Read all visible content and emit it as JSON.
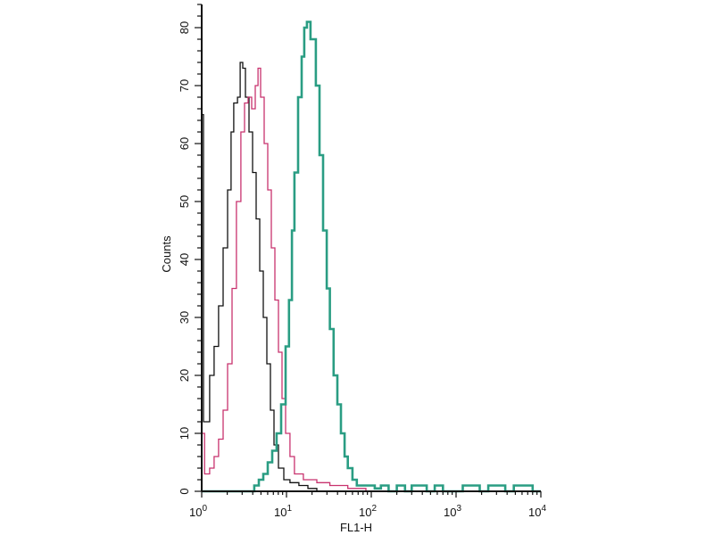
{
  "chart_data": {
    "type": "line",
    "title": "",
    "xlabel": "FL1-H",
    "ylabel": "Counts",
    "xscale": "log",
    "xlim": [
      1,
      10000
    ],
    "ylim": [
      0,
      84
    ],
    "grid": false,
    "legend": "none",
    "x_ticks": [
      {
        "value": 1,
        "base": "10",
        "exp": "0"
      },
      {
        "value": 10,
        "base": "10",
        "exp": "1"
      },
      {
        "value": 100,
        "base": "10",
        "exp": "2"
      },
      {
        "value": 1000,
        "base": "10",
        "exp": "3"
      },
      {
        "value": 10000,
        "base": "10",
        "exp": "4"
      }
    ],
    "y_ticks": [
      "0",
      "10",
      "20",
      "30",
      "40",
      "50",
      "60",
      "70",
      "80"
    ],
    "series": [
      {
        "color": "#111111",
        "points": [
          [
            1.0,
            0
          ],
          [
            1.0,
            65
          ],
          [
            1.05,
            12
          ],
          [
            1.24,
            20
          ],
          [
            1.4,
            25
          ],
          [
            1.58,
            32
          ],
          [
            1.79,
            42
          ],
          [
            2.02,
            52
          ],
          [
            2.22,
            62
          ],
          [
            2.39,
            67
          ],
          [
            2.64,
            68
          ],
          [
            2.84,
            74
          ],
          [
            3.05,
            73
          ],
          [
            3.28,
            68
          ],
          [
            3.61,
            62
          ],
          [
            3.98,
            55
          ],
          [
            4.39,
            47
          ],
          [
            4.83,
            38
          ],
          [
            5.32,
            30
          ],
          [
            5.87,
            22
          ],
          [
            6.47,
            14
          ],
          [
            7.12,
            8
          ],
          [
            8.04,
            4
          ],
          [
            9.3,
            2
          ],
          [
            11.0,
            1.5
          ],
          [
            14.0,
            1
          ],
          [
            17.9,
            0.5
          ],
          [
            22.8,
            0
          ]
        ]
      },
      {
        "color": "#c8326e",
        "points": [
          [
            1.0,
            10
          ],
          [
            1.08,
            3
          ],
          [
            1.24,
            4
          ],
          [
            1.4,
            6
          ],
          [
            1.58,
            9
          ],
          [
            1.79,
            14
          ],
          [
            2.02,
            22
          ],
          [
            2.28,
            35
          ],
          [
            2.57,
            50
          ],
          [
            2.9,
            62
          ],
          [
            3.2,
            67
          ],
          [
            3.53,
            68
          ],
          [
            3.89,
            66
          ],
          [
            4.28,
            70
          ],
          [
            4.61,
            73
          ],
          [
            4.95,
            68
          ],
          [
            5.46,
            60
          ],
          [
            6.01,
            52
          ],
          [
            6.62,
            42
          ],
          [
            7.29,
            33
          ],
          [
            8.04,
            24
          ],
          [
            8.86,
            16
          ],
          [
            9.76,
            10
          ],
          [
            11.0,
            6
          ],
          [
            12.4,
            3
          ],
          [
            15.8,
            2
          ],
          [
            22.8,
            1.5
          ],
          [
            32.5,
            1
          ],
          [
            52.8,
            0.5
          ],
          [
            86.5,
            0
          ]
        ]
      },
      {
        "color": "#2a9d83",
        "points": [
          [
            1.0,
            0
          ],
          [
            3.7,
            0
          ],
          [
            4.17,
            1
          ],
          [
            4.72,
            2
          ],
          [
            5.32,
            3
          ],
          [
            6.01,
            5
          ],
          [
            6.78,
            7
          ],
          [
            7.65,
            10
          ],
          [
            8.64,
            15
          ],
          [
            9.76,
            25
          ],
          [
            10.7,
            33
          ],
          [
            11.6,
            45
          ],
          [
            12.4,
            55
          ],
          [
            13.7,
            68
          ],
          [
            15.1,
            75
          ],
          [
            16.2,
            80
          ],
          [
            17.4,
            81
          ],
          [
            19.2,
            78
          ],
          [
            20.6,
            78
          ],
          [
            22.2,
            70
          ],
          [
            24.5,
            58
          ],
          [
            27.0,
            45
          ],
          [
            29.8,
            35
          ],
          [
            32.5,
            28
          ],
          [
            36.0,
            20
          ],
          [
            39.8,
            15
          ],
          [
            43.9,
            10
          ],
          [
            48.4,
            6
          ],
          [
            52.8,
            4
          ],
          [
            59.9,
            2
          ],
          [
            67.6,
            1
          ],
          [
            86.5,
            1
          ],
          [
            110,
            0.5
          ],
          [
            130,
            1
          ],
          [
            160,
            0
          ],
          [
            200,
            1
          ],
          [
            250,
            0
          ],
          [
            300,
            1
          ],
          [
            380,
            1
          ],
          [
            450,
            0
          ],
          [
            560,
            1
          ],
          [
            700,
            0
          ],
          [
            900,
            0
          ],
          [
            1200,
            1
          ],
          [
            1500,
            1
          ],
          [
            1900,
            0
          ],
          [
            2400,
            1
          ],
          [
            3000,
            1
          ],
          [
            3800,
            0
          ],
          [
            4800,
            1
          ],
          [
            6000,
            1
          ],
          [
            8000,
            0
          ],
          [
            10000,
            0
          ]
        ]
      }
    ]
  }
}
